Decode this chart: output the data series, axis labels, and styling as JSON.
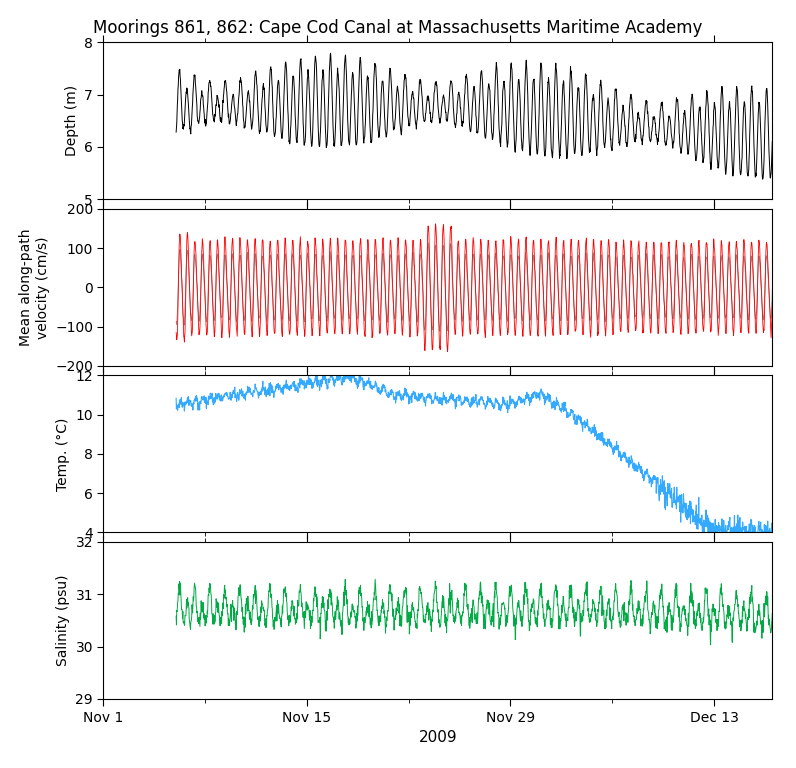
{
  "title": "Moorings 861, 862: Cape Cod Canal at Massachusetts Maritime Academy",
  "xlabel": "2009",
  "panels": [
    {
      "ylabel": "Depth (m)",
      "ylim": [
        5,
        8
      ],
      "yticks": [
        5,
        6,
        7,
        8
      ],
      "color": "#000000",
      "linewidth": 0.7
    },
    {
      "ylabel": "Mean along-path\nvelocity (cm/s)",
      "ylim": [
        -200,
        200
      ],
      "yticks": [
        -200,
        -100,
        0,
        100,
        200
      ],
      "color": "#ff0000",
      "color2": "#888888",
      "linewidth": 0.6
    },
    {
      "ylabel": "Temp. (°C)",
      "ylim": [
        4,
        12
      ],
      "yticks": [
        4,
        6,
        8,
        10,
        12
      ],
      "color": "#33aaff",
      "linewidth": 0.8
    },
    {
      "ylabel": "Salinity (psu)",
      "ylim": [
        29,
        32
      ],
      "yticks": [
        29,
        30,
        31,
        32
      ],
      "color": "#00aa44",
      "linewidth": 0.7
    }
  ],
  "xtick_labels": [
    "Nov 1",
    "Nov 15",
    "Nov 29",
    "Dec 13"
  ],
  "xtick_positions": [
    0,
    14,
    28,
    42
  ],
  "xlim": [
    0,
    46
  ],
  "figsize": [
    7.96,
    7.68
  ],
  "dpi": 100,
  "data_start_day": 5.0,
  "title_fontsize": 12
}
